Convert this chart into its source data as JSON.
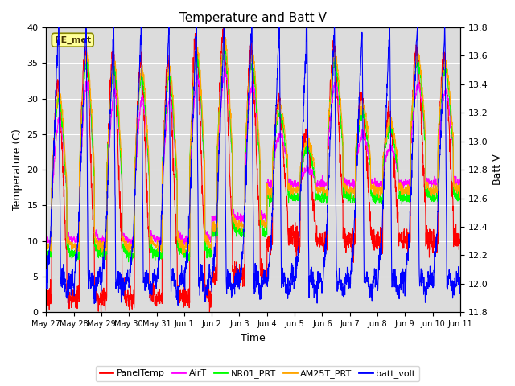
{
  "title": "Temperature and Batt V",
  "xlabel": "Time",
  "ylabel_left": "Temperature (C)",
  "ylabel_right": "Batt V",
  "annotation": "EE_met",
  "left_ylim": [
    0,
    40
  ],
  "right_ylim": [
    11.8,
    13.8
  ],
  "left_yticks": [
    0,
    5,
    10,
    15,
    20,
    25,
    30,
    35,
    40
  ],
  "right_yticks": [
    11.8,
    12.0,
    12.2,
    12.4,
    12.6,
    12.8,
    13.0,
    13.2,
    13.4,
    13.6,
    13.8
  ],
  "xtick_labels": [
    "May 27",
    "May 28",
    "May 29",
    "May 30",
    "May 31",
    "Jun 1",
    "Jun 2",
    "Jun 3",
    "Jun 4",
    "Jun 5",
    "Jun 6",
    "Jun 7",
    "Jun 8",
    "Jun 9",
    "Jun 10",
    "Jun 11"
  ],
  "background_color": "#dcdcdc",
  "legend_entries": [
    "PanelTemp",
    "AirT",
    "NR01_PRT",
    "AM25T_PRT",
    "batt_volt"
  ],
  "legend_colors": [
    "red",
    "magenta",
    "lime",
    "orange",
    "blue"
  ],
  "line_colors": {
    "PanelTemp": "red",
    "AirT": "magenta",
    "NR01_PRT": "lime",
    "AM25T_PRT": "orange",
    "batt_volt": "blue"
  },
  "num_days": 15,
  "points_per_day": 144
}
